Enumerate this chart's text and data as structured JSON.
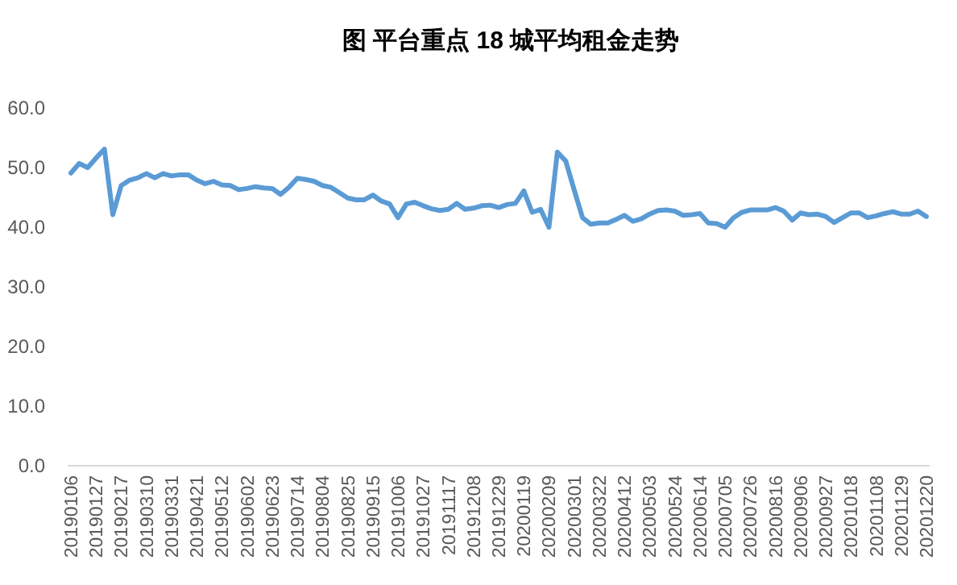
{
  "chart_data": {
    "type": "line",
    "title": "图 平台重点 18 城平均租金走势",
    "categories": [
      "20190106",
      null,
      null,
      "20190127",
      null,
      null,
      "20190217",
      null,
      null,
      "20190310",
      null,
      null,
      "20190331",
      null,
      null,
      "20190421",
      null,
      null,
      "20190512",
      null,
      null,
      "20190602",
      null,
      null,
      "20190623",
      null,
      null,
      "20190714",
      null,
      null,
      "20190804",
      null,
      null,
      "20190825",
      null,
      null,
      "20190915",
      null,
      null,
      "20191006",
      null,
      null,
      "20191027",
      null,
      null,
      "20191117",
      null,
      null,
      "20191208",
      null,
      null,
      "20191229",
      null,
      null,
      "20200119",
      null,
      null,
      "20200209",
      null,
      null,
      "20200301",
      null,
      null,
      "20200322",
      null,
      null,
      "20200412",
      null,
      null,
      "20200503",
      null,
      null,
      "20200524",
      null,
      null,
      "20200614",
      null,
      null,
      "20200705",
      null,
      null,
      "20200726",
      null,
      null,
      "20200816",
      null,
      null,
      "20200906",
      null,
      null,
      "20200927",
      null,
      null,
      "20201018",
      null,
      null,
      "20201108",
      null,
      null,
      "20201129",
      null,
      null,
      "20201220"
    ],
    "series": [
      {
        "color": "#5b9bd5",
        "values": [
          49.1,
          50.7,
          50.0,
          51.6,
          53.1,
          42.1,
          47.0,
          47.9,
          48.3,
          49.0,
          48.3,
          49.0,
          48.6,
          48.8,
          48.8,
          47.9,
          47.3,
          47.7,
          47.1,
          47.0,
          46.3,
          46.5,
          46.8,
          46.6,
          46.5,
          45.5,
          46.7,
          48.2,
          48.0,
          47.7,
          47.0,
          46.7,
          45.8,
          44.9,
          44.6,
          44.6,
          45.4,
          44.4,
          43.9,
          41.6,
          43.9,
          44.2,
          43.6,
          43.1,
          42.8,
          43.0,
          44.0,
          43.0,
          43.2,
          43.6,
          43.7,
          43.3,
          43.8,
          44.0,
          46.1,
          42.5,
          43.0,
          40.0,
          52.6,
          51.1,
          46.3,
          41.6,
          40.5,
          40.7,
          40.7,
          41.3,
          42.0,
          41.0,
          41.4,
          42.2,
          42.8,
          42.9,
          42.7,
          42.0,
          42.1,
          42.3,
          40.7,
          40.6,
          40.0,
          41.6,
          42.5,
          42.9,
          42.9,
          42.9,
          43.3,
          42.7,
          41.2,
          42.4,
          42.1,
          42.2,
          41.8,
          40.8,
          41.6,
          42.4,
          42.4,
          41.6,
          41.9,
          42.3,
          42.6,
          42.2,
          42.2,
          42.7,
          41.8
        ]
      }
    ],
    "ylim": [
      0,
      60
    ],
    "yticks": [
      {
        "value": 0,
        "label": "0.0"
      },
      {
        "value": 10,
        "label": "10.0"
      },
      {
        "value": 20,
        "label": "20.0"
      },
      {
        "value": 30,
        "label": "30.0"
      },
      {
        "value": 40,
        "label": "40.0"
      },
      {
        "value": 50,
        "label": "50.0"
      },
      {
        "value": 60,
        "label": "60.0"
      }
    ],
    "line_style": "solid",
    "grid": false
  }
}
